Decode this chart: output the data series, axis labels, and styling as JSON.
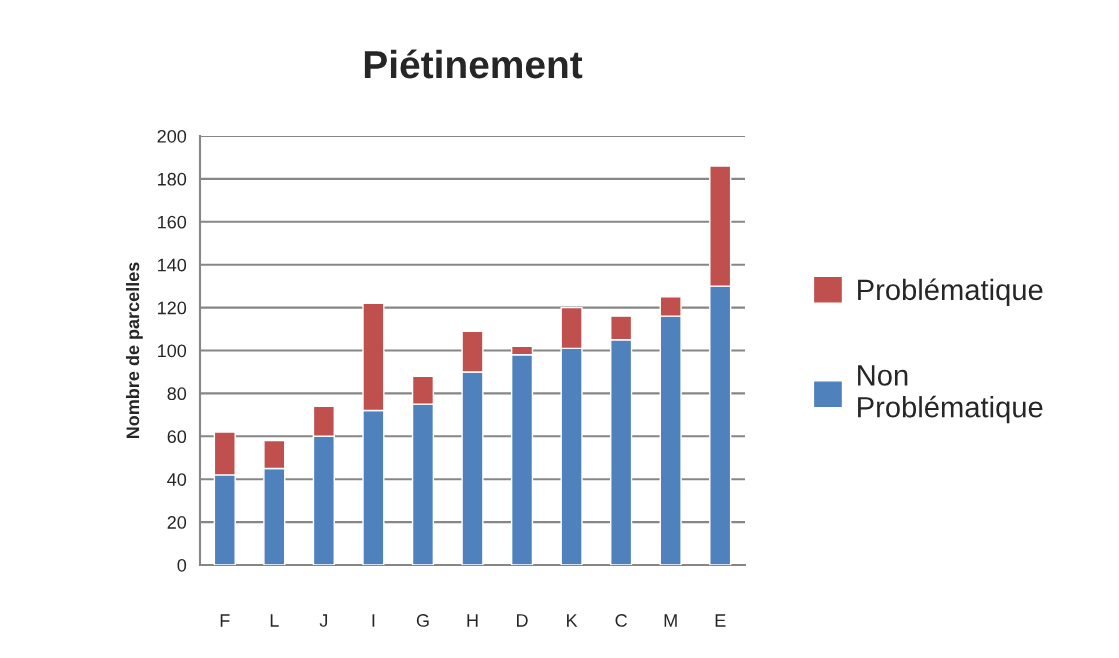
{
  "chart_data": {
    "type": "bar",
    "title": "Piétinement",
    "ylabel": "Nombre de parcelles",
    "categories": [
      "F",
      "L",
      "J",
      "I",
      "G",
      "H",
      "D",
      "K",
      "C",
      "M",
      "E"
    ],
    "series": [
      {
        "name": "Non Problématique",
        "color": "#4f81bd",
        "values": [
          42,
          45,
          60,
          72,
          75,
          90,
          98,
          101,
          105,
          116,
          130
        ]
      },
      {
        "name": "Problématique",
        "color": "#c0504d",
        "values": [
          20,
          13,
          14,
          50,
          13,
          19,
          4,
          19,
          11,
          9,
          56
        ]
      }
    ],
    "stacked": true,
    "ylim": [
      0,
      200
    ],
    "yticks": [
      0,
      20,
      40,
      60,
      80,
      100,
      120,
      140,
      160,
      180,
      200
    ],
    "grid": "y",
    "legend": "right"
  }
}
